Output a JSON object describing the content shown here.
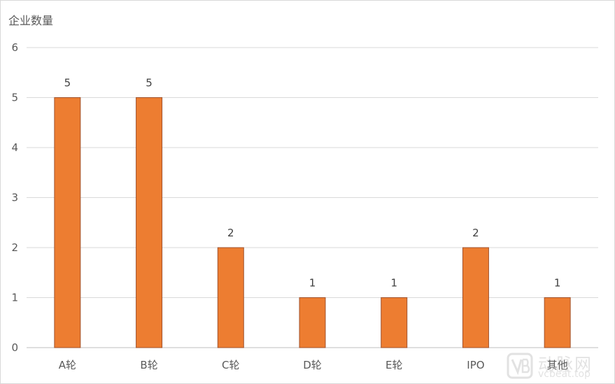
{
  "chart_data": {
    "type": "bar",
    "ylabel": "企业数量",
    "xlabel": "",
    "categories": [
      "A轮",
      "B轮",
      "C轮",
      "D轮",
      "E轮",
      "IPO",
      "其他"
    ],
    "values": [
      5,
      5,
      2,
      1,
      1,
      2,
      1
    ],
    "ylim": [
      0,
      6
    ],
    "yticks": [
      0,
      1,
      2,
      3,
      4,
      5,
      6
    ],
    "grid": true,
    "data_labels": true,
    "bar_color": "#ED7D31",
    "bar_border_color": "#A0522D"
  },
  "watermark": {
    "name": "动脉网",
    "url": "vcbeat.top"
  }
}
